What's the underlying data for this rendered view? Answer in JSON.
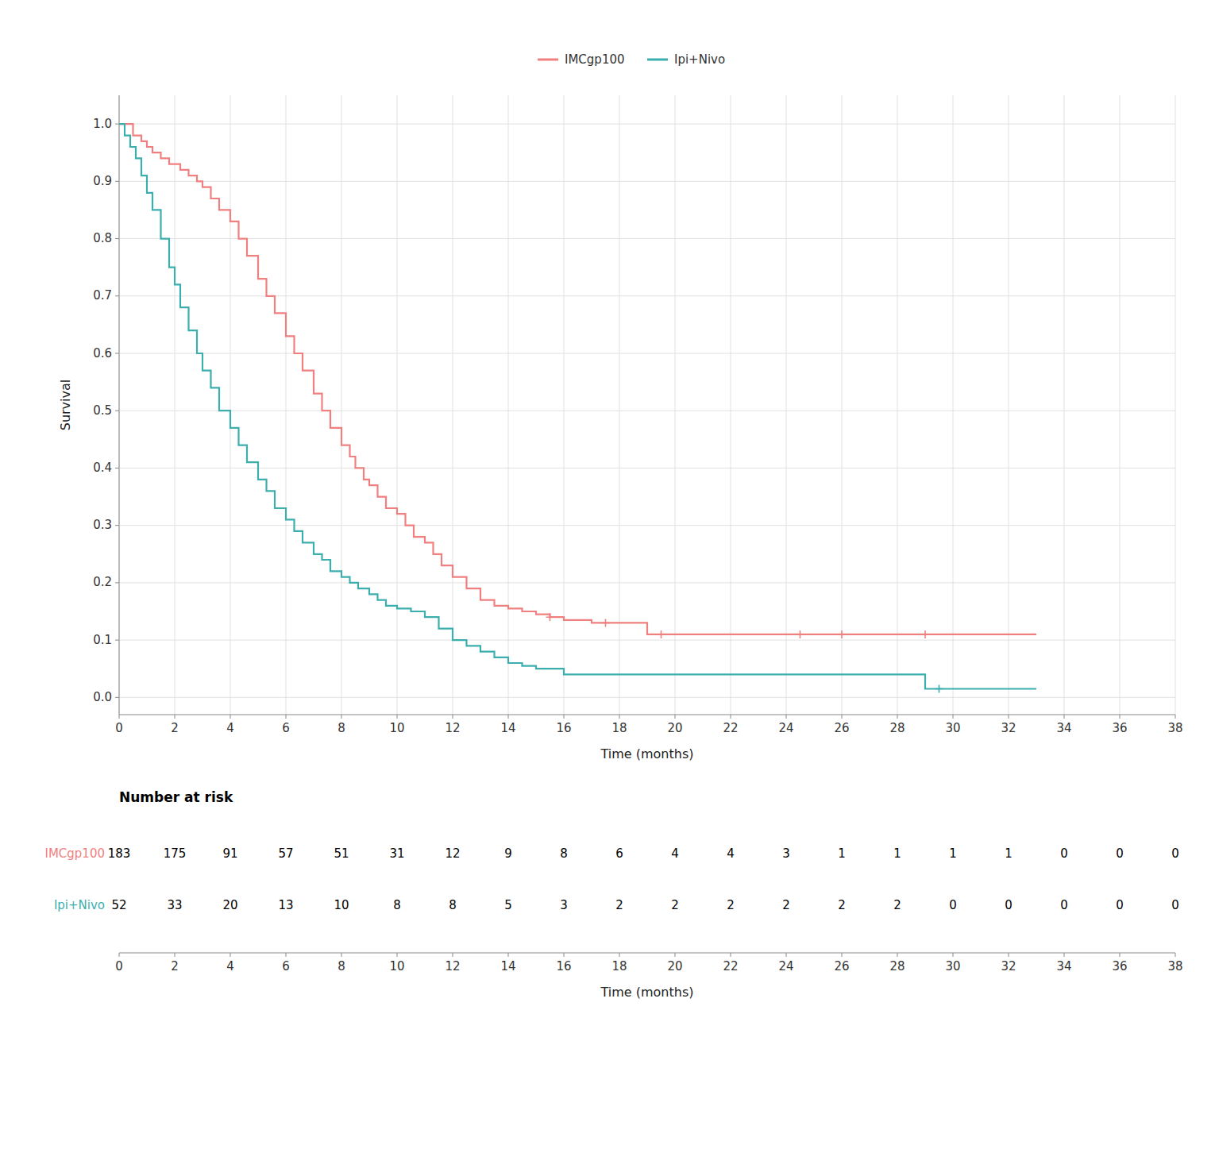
{
  "chart_data": {
    "type": "step",
    "xlabel": "Time (months)",
    "ylabel": "Survival",
    "xlim": [
      0,
      38
    ],
    "ylim": [
      -0.03,
      1.05
    ],
    "xticks": [
      0,
      2,
      4,
      6,
      8,
      10,
      12,
      14,
      16,
      18,
      20,
      22,
      24,
      26,
      28,
      30,
      32,
      34,
      36,
      38
    ],
    "yticks": [
      {
        "value": 0.0,
        "label": "0.0"
      },
      {
        "value": 0.1,
        "label": "0.1"
      },
      {
        "value": 0.2,
        "label": "0.2"
      },
      {
        "value": 0.3,
        "label": "0.3"
      },
      {
        "value": 0.4,
        "label": "0.4"
      },
      {
        "value": 0.5,
        "label": "0.5"
      },
      {
        "value": 0.6,
        "label": "0.6"
      },
      {
        "value": 0.7,
        "label": "0.7"
      },
      {
        "value": 0.8,
        "label": "0.8"
      },
      {
        "value": 0.9,
        "label": "0.9"
      },
      {
        "value": 1.0,
        "label": "1.0"
      }
    ],
    "grid": true,
    "legend": "top",
    "series": [
      {
        "name": "IMCgp100",
        "color": "#F08080",
        "x": [
          0,
          0.2,
          0.5,
          0.8,
          1.0,
          1.2,
          1.5,
          1.8,
          2.0,
          2.2,
          2.5,
          2.8,
          3.0,
          3.3,
          3.6,
          4.0,
          4.3,
          4.6,
          5.0,
          5.3,
          5.6,
          6.0,
          6.3,
          6.6,
          7.0,
          7.3,
          7.6,
          8.0,
          8.3,
          8.5,
          8.8,
          9.0,
          9.3,
          9.6,
          10.0,
          10.3,
          10.6,
          11.0,
          11.3,
          11.6,
          12.0,
          12.5,
          13.0,
          13.5,
          14.0,
          14.5,
          15.0,
          15.5,
          16.0,
          17.0,
          18.0,
          19.0,
          20.0,
          22.0,
          24.0,
          26.0,
          28.0,
          29.0,
          30.0,
          33.0
        ],
        "values": [
          1.0,
          1.0,
          0.98,
          0.97,
          0.96,
          0.95,
          0.94,
          0.93,
          0.93,
          0.92,
          0.91,
          0.9,
          0.89,
          0.87,
          0.85,
          0.83,
          0.8,
          0.77,
          0.73,
          0.7,
          0.67,
          0.63,
          0.6,
          0.57,
          0.53,
          0.5,
          0.47,
          0.44,
          0.42,
          0.4,
          0.38,
          0.37,
          0.35,
          0.33,
          0.32,
          0.3,
          0.28,
          0.27,
          0.25,
          0.23,
          0.21,
          0.19,
          0.17,
          0.16,
          0.155,
          0.15,
          0.145,
          0.14,
          0.135,
          0.13,
          0.13,
          0.11,
          0.11,
          0.11,
          0.11,
          0.11,
          0.11,
          0.11,
          0.11,
          0.11
        ],
        "censor_x": [
          15.5,
          17.5,
          19.5,
          24.5,
          26.0,
          29.0
        ],
        "censor_values": [
          0.14,
          0.13,
          0.11,
          0.11,
          0.11,
          0.11
        ]
      },
      {
        "name": "Ipi+Nivo",
        "color": "#3DAEAE",
        "x": [
          0,
          0.2,
          0.4,
          0.6,
          0.8,
          1.0,
          1.2,
          1.5,
          1.8,
          2.0,
          2.2,
          2.5,
          2.8,
          3.0,
          3.3,
          3.6,
          4.0,
          4.3,
          4.6,
          5.0,
          5.3,
          5.6,
          6.0,
          6.3,
          6.6,
          7.0,
          7.3,
          7.6,
          8.0,
          8.3,
          8.6,
          9.0,
          9.3,
          9.6,
          10.0,
          10.5,
          11.0,
          11.5,
          12.0,
          12.5,
          13.0,
          13.5,
          14.0,
          14.5,
          15.0,
          16.0,
          17.0,
          18.0,
          19.0,
          20.0,
          22.0,
          24.0,
          26.0,
          28.0,
          29.0,
          30.0,
          33.0
        ],
        "values": [
          1.0,
          0.98,
          0.96,
          0.94,
          0.91,
          0.88,
          0.85,
          0.8,
          0.75,
          0.72,
          0.68,
          0.64,
          0.6,
          0.57,
          0.54,
          0.5,
          0.47,
          0.44,
          0.41,
          0.38,
          0.36,
          0.33,
          0.31,
          0.29,
          0.27,
          0.25,
          0.24,
          0.22,
          0.21,
          0.2,
          0.19,
          0.18,
          0.17,
          0.16,
          0.155,
          0.15,
          0.14,
          0.12,
          0.1,
          0.09,
          0.08,
          0.07,
          0.06,
          0.055,
          0.05,
          0.04,
          0.04,
          0.04,
          0.04,
          0.04,
          0.04,
          0.04,
          0.04,
          0.04,
          0.015,
          0.015,
          0.015
        ],
        "censor_x": [
          29.5
        ],
        "censor_values": [
          0.015
        ]
      }
    ],
    "risk_table": {
      "title": "Number at risk",
      "x": [
        0,
        2,
        4,
        6,
        8,
        10,
        12,
        14,
        16,
        18,
        20,
        22,
        24,
        26,
        28,
        30,
        32,
        34,
        36,
        38
      ],
      "rows": [
        {
          "name": "IMCgp100",
          "color": "#F08080",
          "values": [
            183,
            175,
            91,
            57,
            51,
            31,
            12,
            9,
            8,
            6,
            4,
            4,
            3,
            1,
            1,
            1,
            1,
            0,
            0,
            0
          ]
        },
        {
          "name": "Ipi+Nivo",
          "color": "#3DAEAE",
          "values": [
            52,
            33,
            20,
            13,
            10,
            8,
            8,
            5,
            3,
            2,
            2,
            2,
            2,
            2,
            2,
            0,
            0,
            0,
            0,
            0
          ]
        }
      ]
    }
  }
}
